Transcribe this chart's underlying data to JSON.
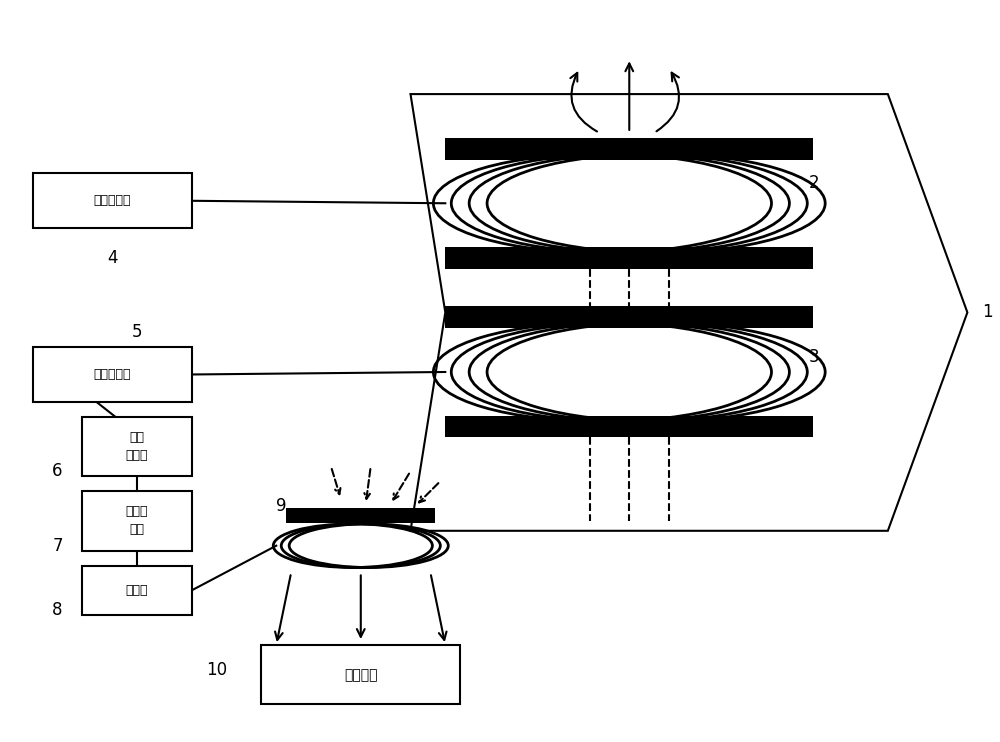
{
  "bg_color": "#ffffff",
  "line_color": "#000000",
  "labels": {
    "jieshou": "接收端模块",
    "fashe": "发射端模块",
    "xinhao1": "信号",
    "xinhao2": "采样器",
    "ketiao1": "可调放",
    "ketiao2": "大器",
    "yixiang": "移相器",
    "minggan": "敏感设备"
  },
  "numbers": [
    "1",
    "2",
    "3",
    "4",
    "5",
    "6",
    "7",
    "8",
    "9",
    "10"
  ]
}
